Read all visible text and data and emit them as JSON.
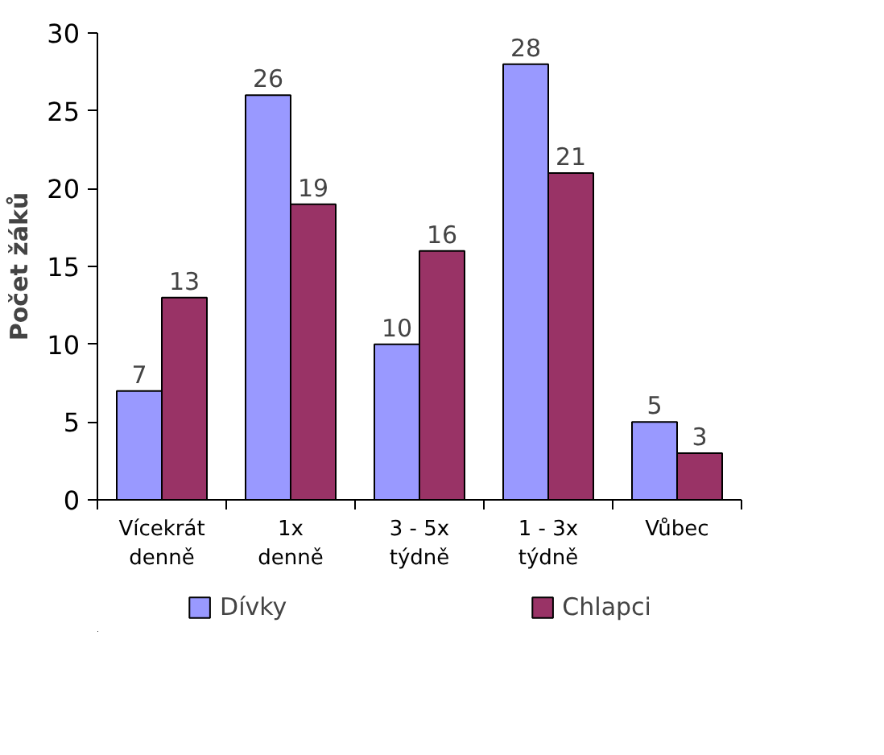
{
  "chart_data": {
    "type": "bar",
    "ylabel": "Počet žáků",
    "categories": [
      "Vícekrát\ndenně",
      "1x\ndenně",
      "3 - 5x\ntýdně",
      "1 - 3x\ntýdně",
      "Vůbec"
    ],
    "series": [
      {
        "name": "Dívky",
        "color": "#9999ff",
        "values": [
          7,
          26,
          10,
          28,
          5
        ]
      },
      {
        "name": "Chlapci",
        "color": "#993366",
        "values": [
          13,
          19,
          16,
          21,
          3
        ]
      }
    ],
    "ylim": [
      0,
      30
    ],
    "yticks": [
      0,
      5,
      10,
      15,
      20,
      25,
      30
    ],
    "grid": false,
    "legend": "bottom",
    "data_labels": true
  }
}
